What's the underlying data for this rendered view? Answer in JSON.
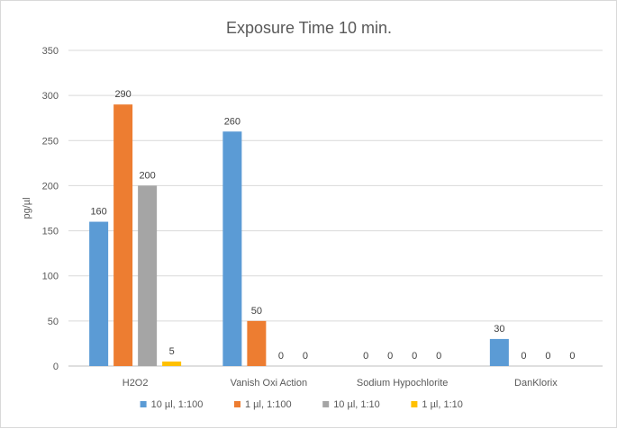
{
  "chart_data": {
    "type": "bar",
    "title": "Exposure Time 10 min.",
    "xlabel": "",
    "ylabel": "pg/µl",
    "ylim": [
      0,
      350
    ],
    "yticks": [
      0,
      50,
      100,
      150,
      200,
      250,
      300,
      350
    ],
    "grid": true,
    "legend_position": "bottom",
    "categories": [
      "H2O2",
      "Vanish Oxi Action",
      "Sodium Hypochlorite",
      "DanKlorix"
    ],
    "series": [
      {
        "name": "10 µl, 1:100",
        "color": "#5b9bd5",
        "values": [
          160,
          260,
          0,
          30
        ]
      },
      {
        "name": "1 µl, 1:100",
        "color": "#ed7d31",
        "values": [
          290,
          50,
          0,
          0
        ]
      },
      {
        "name": "10 µl, 1:10",
        "color": "#a5a5a5",
        "values": [
          200,
          0,
          0,
          0
        ]
      },
      {
        "name": "1 µl, 1:10",
        "color": "#ffc000",
        "values": [
          5,
          0,
          0,
          0
        ]
      }
    ]
  }
}
